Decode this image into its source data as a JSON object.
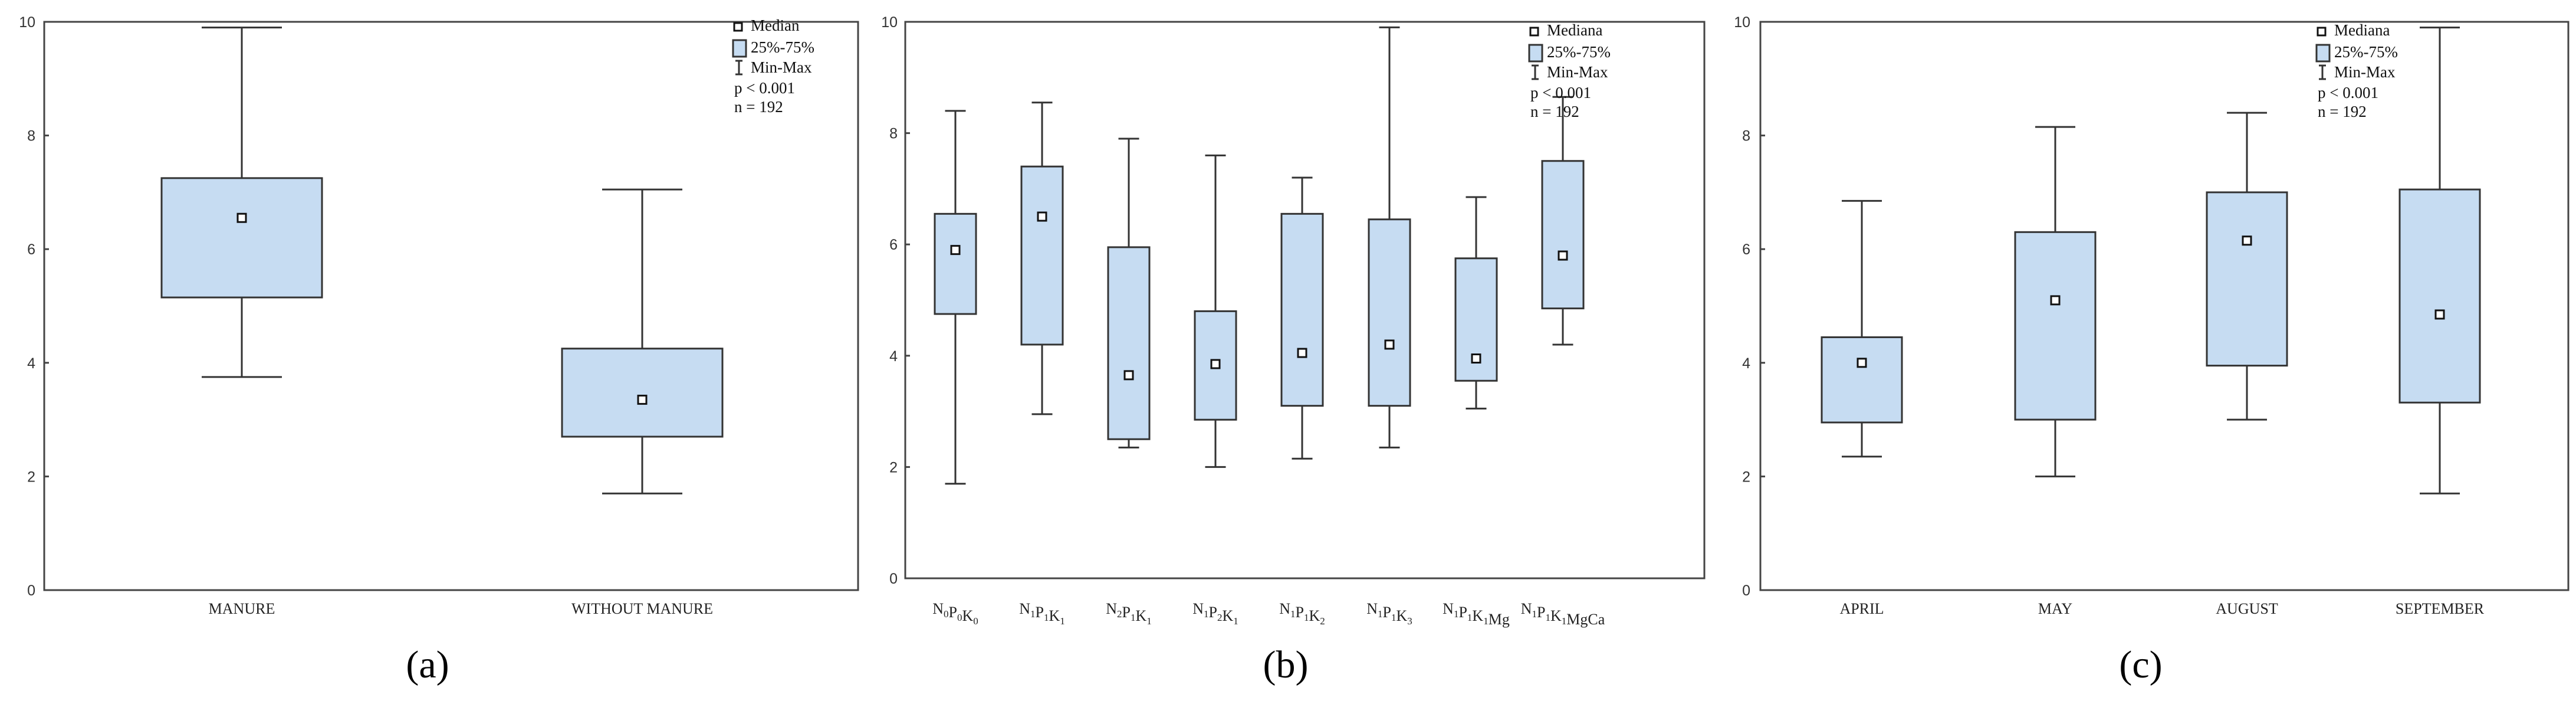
{
  "chart_data": [
    {
      "type": "box",
      "panel_label": "(a)",
      "title": "",
      "xlabel": "",
      "ylabel": "",
      "ylim": [
        0,
        10
      ],
      "yticks": [
        0,
        2,
        4,
        6,
        8,
        10
      ],
      "categories": [
        "MANURE",
        "WITHOUT MANURE"
      ],
      "min": [
        3.75,
        1.7
      ],
      "q1": [
        5.15,
        2.7
      ],
      "median": [
        6.55,
        3.35
      ],
      "q3": [
        7.25,
        4.25
      ],
      "max": [
        9.9,
        7.05
      ],
      "legend": {
        "median": "Median",
        "box": "25%-75%",
        "whisker": "Min-Max",
        "stat": "p < 0.001",
        "n": "n = 192"
      }
    },
    {
      "type": "box",
      "panel_label": "(b)",
      "title": "",
      "xlabel": "",
      "ylabel": "",
      "ylim": [
        0,
        10
      ],
      "yticks": [
        0,
        2,
        4,
        6,
        8,
        10
      ],
      "categories": [
        {
          "base": "N",
          "s1": "0",
          "p": "P",
          "s2": "0",
          "k": "K",
          "s3": "0",
          "extra": ""
        },
        {
          "base": "N",
          "s1": "1",
          "p": "P",
          "s2": "1",
          "k": "K",
          "s3": "1",
          "extra": ""
        },
        {
          "base": "N",
          "s1": "2",
          "p": "P",
          "s2": "1",
          "k": "K",
          "s3": "1",
          "extra": ""
        },
        {
          "base": "N",
          "s1": "1",
          "p": "P",
          "s2": "2",
          "k": "K",
          "s3": "1",
          "extra": ""
        },
        {
          "base": "N",
          "s1": "1",
          "p": "P",
          "s2": "1",
          "k": "K",
          "s3": "2",
          "extra": ""
        },
        {
          "base": "N",
          "s1": "1",
          "p": "P",
          "s2": "1",
          "k": "K",
          "s3": "3",
          "extra": ""
        },
        {
          "base": "N",
          "s1": "1",
          "p": "P",
          "s2": "1",
          "k": "K",
          "s3": "1",
          "extra": "Mg"
        },
        {
          "base": "N",
          "s1": "1",
          "p": "P",
          "s2": "1",
          "k": "K",
          "s3": "1",
          "extra": "MgCa"
        }
      ],
      "min": [
        1.7,
        2.95,
        2.35,
        2.0,
        2.15,
        2.35,
        3.05,
        4.2
      ],
      "q1": [
        4.75,
        4.2,
        2.5,
        2.85,
        3.1,
        3.1,
        3.55,
        4.85
      ],
      "median": [
        5.9,
        6.5,
        3.65,
        3.85,
        4.05,
        4.2,
        3.95,
        5.8
      ],
      "q3": [
        6.55,
        7.4,
        5.95,
        4.8,
        6.55,
        6.45,
        5.75,
        7.5
      ],
      "max": [
        8.4,
        8.55,
        7.9,
        7.6,
        7.2,
        9.9,
        6.85,
        8.65
      ],
      "legend": {
        "median": "Mediana",
        "box": "25%-75%",
        "whisker": "Min-Max",
        "stat": "p < 0.001",
        "n": "n = 192"
      }
    },
    {
      "type": "box",
      "panel_label": "(c)",
      "title": "",
      "xlabel": "",
      "ylabel": "",
      "ylim": [
        0,
        10
      ],
      "yticks": [
        0,
        2,
        4,
        6,
        8,
        10
      ],
      "categories": [
        "APRIL",
        "MAY",
        "AUGUST",
        "SEPTEMBER"
      ],
      "min": [
        2.35,
        2.0,
        3.0,
        1.7
      ],
      "q1": [
        2.95,
        3.0,
        3.95,
        3.3
      ],
      "median": [
        4.0,
        5.1,
        6.15,
        4.85
      ],
      "q3": [
        4.45,
        6.3,
        7.0,
        7.05
      ],
      "max": [
        6.85,
        8.15,
        8.4,
        9.9
      ],
      "legend": {
        "median": "Mediana",
        "box": "25%-75%",
        "whisker": "Min-Max",
        "stat": "p < 0.001",
        "n": "n = 192"
      }
    }
  ]
}
